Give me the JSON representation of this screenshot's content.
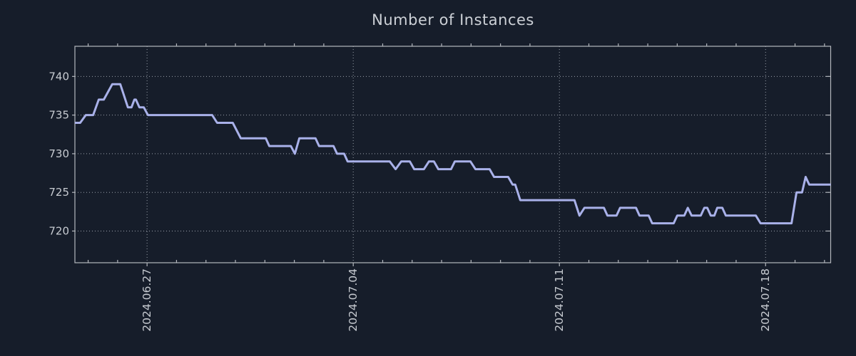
{
  "colors": {
    "background": "#161d2a",
    "axis": "#b4b8be",
    "grid": "#9aa0aa",
    "tick_label": "#c7cbd1",
    "title": "#ccd0d6",
    "line": "#a9b1e9"
  },
  "chart_data": {
    "type": "line",
    "title": "Number of Instances",
    "xlabel": "",
    "ylabel": "",
    "legend": "none",
    "grid": "dotted both axes",
    "x_unit": "days relative to 2024-06-27",
    "xlim": [
      -2.45,
      23.21
    ],
    "ylim": [
      715.9,
      743.9
    ],
    "y_ticks": [
      720,
      725,
      730,
      735,
      740
    ],
    "x_major_ticks": [
      {
        "day": 0,
        "label": "2024.06.27"
      },
      {
        "day": 7,
        "label": "2024.07.04"
      },
      {
        "day": 14,
        "label": "2024.07.11"
      },
      {
        "day": 21,
        "label": "2024.07.18"
      }
    ],
    "x_minor_tick_interval_days": 1,
    "series": [
      {
        "name": "instances",
        "color": "#a9b1e9",
        "points": [
          [
            -2.45,
            734
          ],
          [
            -2.27,
            734
          ],
          [
            -2.08,
            735
          ],
          [
            -1.83,
            735
          ],
          [
            -1.64,
            737
          ],
          [
            -1.47,
            737
          ],
          [
            -1.18,
            739
          ],
          [
            -0.91,
            739
          ],
          [
            -0.65,
            736
          ],
          [
            -0.53,
            736
          ],
          [
            -0.43,
            737
          ],
          [
            -0.38,
            737
          ],
          [
            -0.26,
            736
          ],
          [
            -0.11,
            736
          ],
          [
            0.03,
            735
          ],
          [
            2.21,
            735
          ],
          [
            2.38,
            734
          ],
          [
            2.91,
            734
          ],
          [
            3.18,
            732
          ],
          [
            4.03,
            732
          ],
          [
            4.15,
            731
          ],
          [
            4.88,
            731
          ],
          [
            5.02,
            730
          ],
          [
            5.17,
            732
          ],
          [
            5.72,
            732
          ],
          [
            5.84,
            731
          ],
          [
            6.33,
            731
          ],
          [
            6.45,
            730
          ],
          [
            6.69,
            730
          ],
          [
            6.81,
            729
          ],
          [
            8.24,
            729
          ],
          [
            8.44,
            728
          ],
          [
            8.63,
            729
          ],
          [
            8.92,
            729
          ],
          [
            9.07,
            728
          ],
          [
            9.4,
            728
          ],
          [
            9.57,
            729
          ],
          [
            9.74,
            729
          ],
          [
            9.89,
            728
          ],
          [
            10.32,
            728
          ],
          [
            10.45,
            729
          ],
          [
            10.98,
            729
          ],
          [
            11.15,
            728
          ],
          [
            11.63,
            728
          ],
          [
            11.78,
            727
          ],
          [
            12.26,
            727
          ],
          [
            12.41,
            726
          ],
          [
            12.5,
            726
          ],
          [
            12.67,
            724
          ],
          [
            14.51,
            724
          ],
          [
            14.68,
            722
          ],
          [
            14.85,
            723
          ],
          [
            15.51,
            723
          ],
          [
            15.63,
            722
          ],
          [
            15.94,
            722
          ],
          [
            16.06,
            723
          ],
          [
            16.6,
            723
          ],
          [
            16.72,
            722
          ],
          [
            17.03,
            722
          ],
          [
            17.15,
            721
          ],
          [
            17.88,
            721
          ],
          [
            18.0,
            722
          ],
          [
            18.24,
            722
          ],
          [
            18.36,
            723
          ],
          [
            18.49,
            722
          ],
          [
            18.8,
            722
          ],
          [
            18.92,
            723
          ],
          [
            19.02,
            723
          ],
          [
            19.14,
            722
          ],
          [
            19.26,
            722
          ],
          [
            19.36,
            723
          ],
          [
            19.53,
            723
          ],
          [
            19.65,
            722
          ],
          [
            20.67,
            722
          ],
          [
            20.83,
            721
          ],
          [
            21.88,
            721
          ],
          [
            22.05,
            725
          ],
          [
            22.24,
            725
          ],
          [
            22.36,
            727
          ],
          [
            22.48,
            726
          ],
          [
            23.21,
            726
          ]
        ]
      }
    ]
  }
}
